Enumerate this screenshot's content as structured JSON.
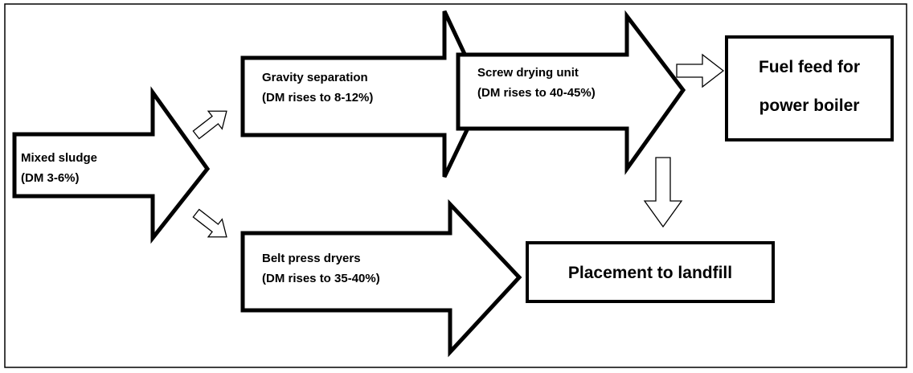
{
  "nodes": [
    {
      "lines": [
        "Mixed sludge",
        "(DM 3-6%)"
      ]
    },
    {
      "lines": [
        "Gravity separation",
        "(DM rises to 8-12%)"
      ]
    },
    {
      "lines": [
        "Screw drying unit",
        "(DM rises to 40-45%)"
      ]
    },
    {
      "lines": [
        "Belt press dryers",
        "(DM rises to 35-40%)"
      ]
    },
    {
      "lines": [
        "Fuel feed for",
        "power boiler"
      ]
    },
    {
      "lines": [
        "Placement to landfill"
      ]
    }
  ]
}
